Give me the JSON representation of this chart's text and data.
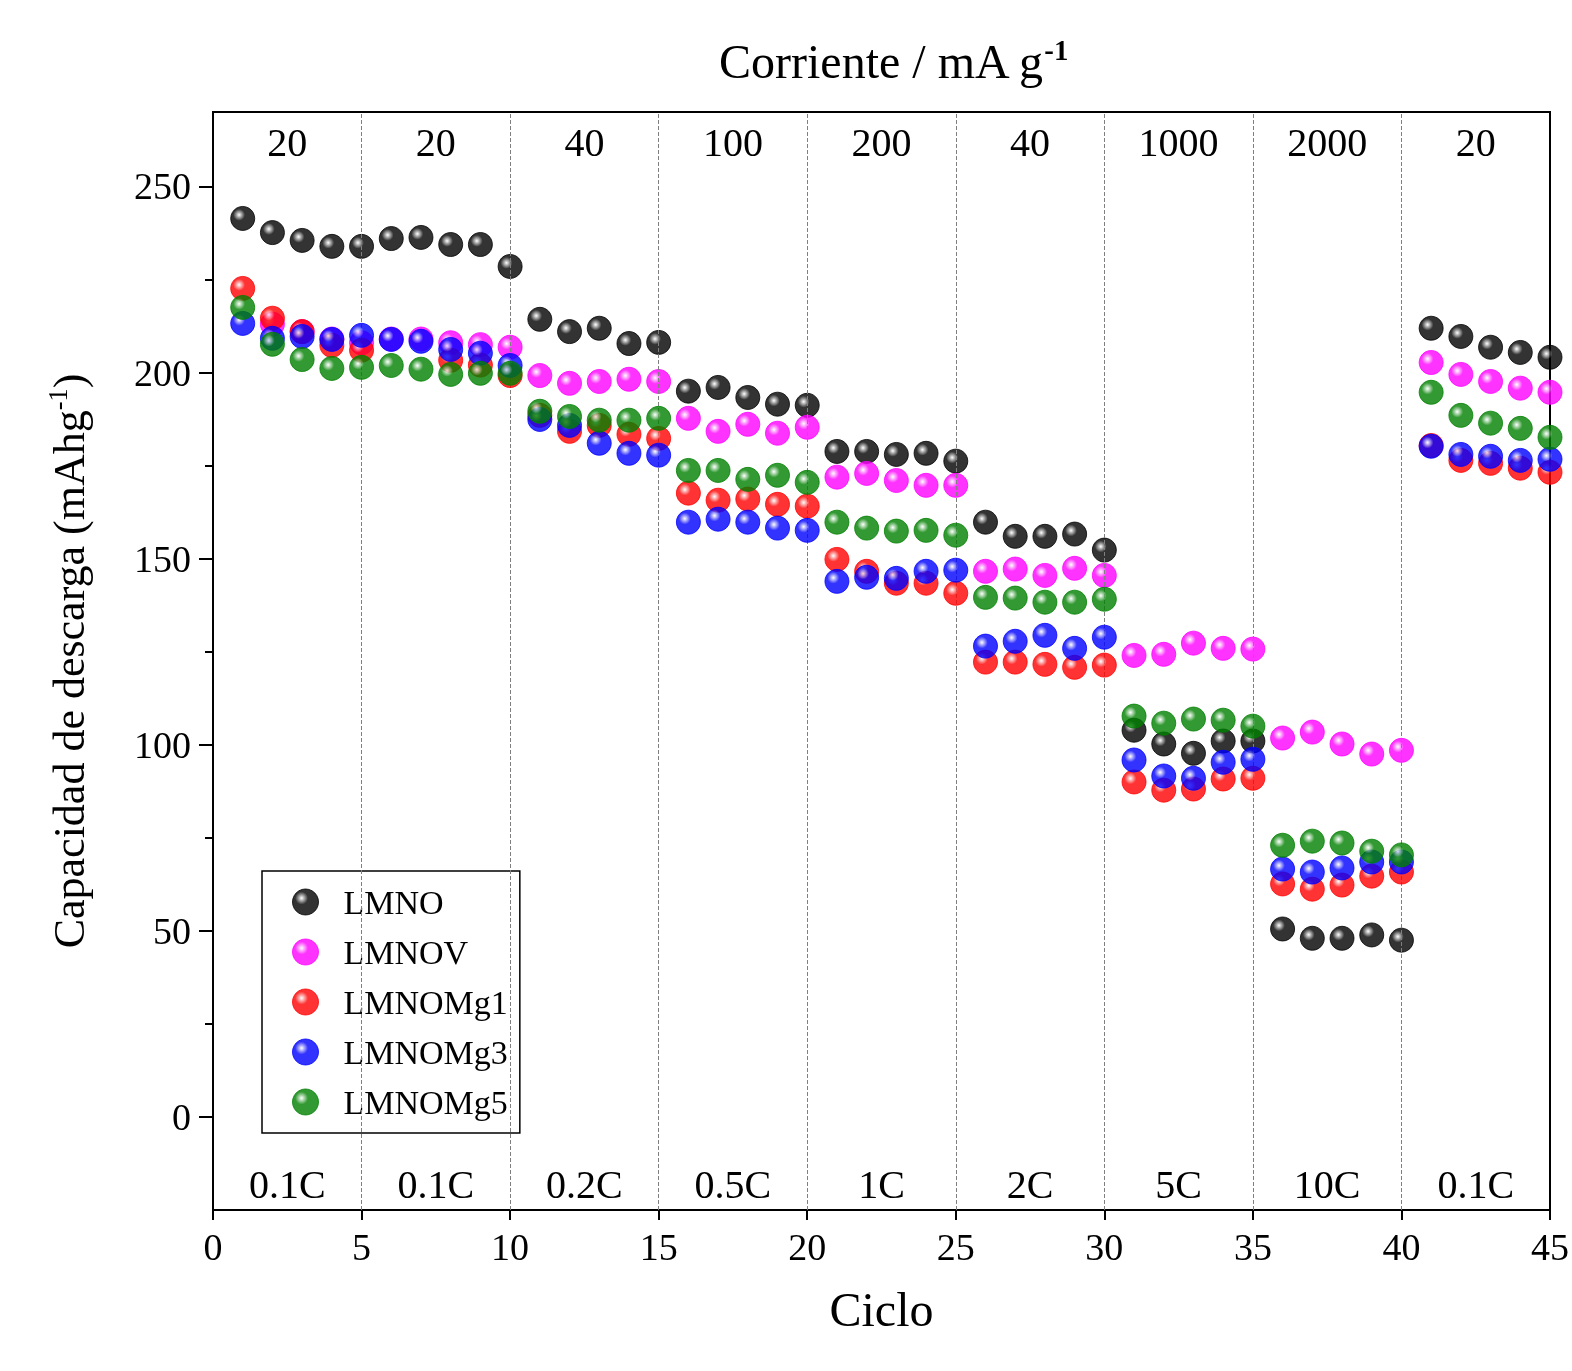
{
  "chart_data": {
    "type": "scatter",
    "title": "Corriente / mA g$^{-1}$",
    "xlabel": "Ciclo",
    "ylabel": "Capacidad de descarga (mAhg$^{-1}$)",
    "x": [
      1,
      2,
      3,
      4,
      5,
      6,
      7,
      8,
      9,
      10,
      11,
      12,
      13,
      14,
      15,
      16,
      17,
      18,
      19,
      20,
      21,
      22,
      23,
      24,
      25,
      26,
      27,
      28,
      29,
      30,
      31,
      32,
      33,
      34,
      35,
      36,
      37,
      38,
      39,
      40,
      41,
      42,
      43,
      44,
      45
    ],
    "xlim": [
      0,
      45
    ],
    "xticks": [
      0,
      5,
      10,
      15,
      20,
      25,
      30,
      35,
      40,
      45
    ],
    "ylim": [
      -25,
      270
    ],
    "yticks": [
      0,
      50,
      100,
      150,
      200,
      250
    ],
    "grid": false,
    "legend": "bottom left",
    "marker": "circle",
    "series": [
      {
        "name": "LMNO",
        "color": "#000000",
        "values": [
          241.4,
          237.6,
          235.5,
          233.9,
          233.9,
          236,
          236.3,
          234.4,
          234.4,
          228.5,
          214.3,
          211,
          211.9,
          207.8,
          208.1,
          195,
          196,
          193.3,
          191.5,
          191.2,
          178.8,
          178.8,
          178,
          178.3,
          176.2,
          159.8,
          156,
          156,
          156.6,
          152.3,
          103.9,
          100.2,
          97.7,
          101,
          101,
          50.5,
          48,
          48,
          48.9,
          47.5,
          211.9,
          209.7,
          206.8,
          205.4,
          204.1
        ]
      },
      {
        "name": "LMNOV",
        "color": "#ff00ff",
        "values": [
          null,
          213,
          211,
          209,
          208,
          209,
          209,
          208,
          207.5,
          206.8,
          199.2,
          197.1,
          197.6,
          198.2,
          197.6,
          187.7,
          184.2,
          186.1,
          183.7,
          185.3,
          171.9,
          172.9,
          171,
          169.7,
          169.7,
          146.6,
          147.2,
          145.5,
          147.4,
          145.5,
          124,
          124.3,
          127.3,
          125.9,
          125.7,
          101.8,
          103.4,
          100.2,
          97.5,
          98.5,
          202.7,
          199.5,
          197.6,
          195.8,
          194.7
        ]
      },
      {
        "name": "LMNOMg1",
        "color": "#ff0000",
        "values": [
          222.6,
          214.6,
          211,
          207.3,
          206,
          null,
          null,
          203.3,
          202,
          199.2,
          188.5,
          184.2,
          185.8,
          183.4,
          182.3,
          167.6,
          165.7,
          166,
          164.6,
          164.1,
          149.8,
          146.6,
          143.4,
          143.4,
          140.7,
          122.2,
          122.2,
          121.6,
          120.8,
          121.4,
          90,
          87.8,
          88.1,
          90.8,
          91,
          62.6,
          61.2,
          62.3,
          64.7,
          65.8,
          180.4,
          176.4,
          175.6,
          174.3,
          173.2
        ]
      },
      {
        "name": "LMNOMg3",
        "color": "#0000ff",
        "values": [
          213.2,
          209.2,
          209.7,
          208.9,
          210,
          208.9,
          208.4,
          206.2,
          205.2,
          201.9,
          187.4,
          185.8,
          181,
          178.3,
          177.8,
          159.8,
          160.6,
          159.8,
          158.2,
          157.6,
          143.9,
          145,
          144.7,
          146.6,
          146.9,
          126.5,
          127.8,
          129.4,
          125.9,
          128.9,
          95.9,
          91.6,
          91,
          95.3,
          96.1,
          66.6,
          65.8,
          66.9,
          68.5,
          68.5,
          180.2,
          178,
          177.5,
          176.4,
          176.7
        ]
      },
      {
        "name": "LMNOMg5",
        "color": "#008000",
        "values": [
          217.5,
          207.6,
          203.5,
          201.1,
          201.4,
          201.9,
          200.9,
          199.5,
          199.8,
          199.8,
          189.6,
          188.2,
          187.2,
          187.2,
          187.7,
          173.7,
          173.7,
          171.3,
          172.4,
          170.5,
          159.8,
          158.2,
          157.4,
          157.6,
          156.3,
          139.6,
          139.4,
          138.3,
          138.3,
          139.1,
          107.7,
          105.8,
          106.9,
          106.6,
          105,
          73,
          74.1,
          73.6,
          71.4,
          70.4,
          194.7,
          188.5,
          186.4,
          185,
          182.6
        ]
      }
    ],
    "ref_lines": [
      {
        "axis": "x",
        "value": 5,
        "line_style": "dashed",
        "color": "#808080"
      },
      {
        "axis": "x",
        "value": 10,
        "line_style": "dashed",
        "color": "#808080"
      },
      {
        "axis": "x",
        "value": 15,
        "line_style": "dashed",
        "color": "#808080"
      },
      {
        "axis": "x",
        "value": 20,
        "line_style": "dashed",
        "color": "#808080"
      },
      {
        "axis": "x",
        "value": 25,
        "line_style": "dashed",
        "color": "#808080"
      },
      {
        "axis": "x",
        "value": 30,
        "line_style": "dashed",
        "color": "#808080"
      },
      {
        "axis": "x",
        "value": 35,
        "line_style": "dashed",
        "color": "#808080"
      },
      {
        "axis": "x",
        "value": 40,
        "line_style": "dashed",
        "color": "#808080"
      }
    ],
    "annotations": [
      "20",
      "20",
      "40",
      "100",
      "200",
      "40",
      "1000",
      "2000",
      "20",
      "0.1C",
      "0.1C",
      "0.2C",
      "0.5C",
      "1C",
      "2C",
      "5C",
      "10C",
      "0.1C"
    ]
  }
}
